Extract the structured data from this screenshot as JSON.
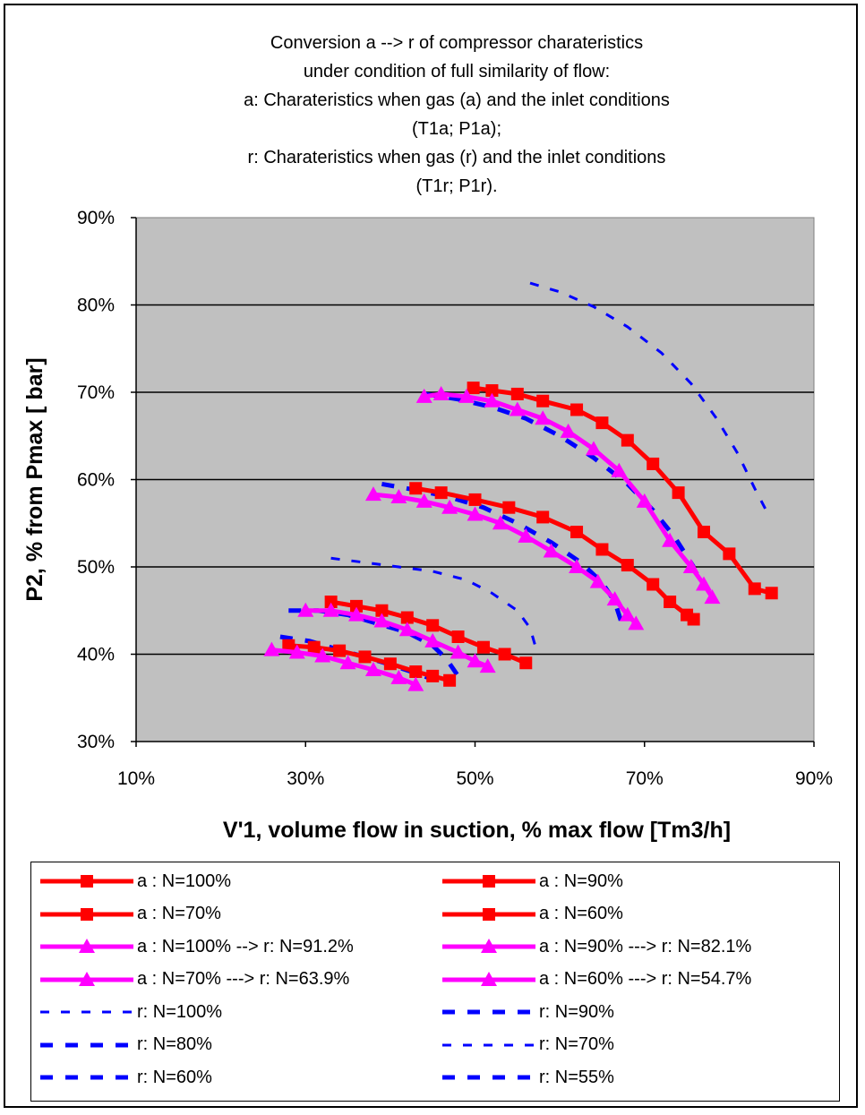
{
  "chart_data": {
    "type": "line",
    "title_lines": [
      "Conversion a --> r of compressor charateristics",
      "under condition of full similarity of flow:",
      "a: Charateristics when gas (a) and the inlet conditions",
      "(T1a; P1a);",
      "r: Charateristics when gas (r) and the inlet conditions",
      "(T1r; P1r)."
    ],
    "xlabel": "V'1, volume flow in suction, % max flow [Tm3/h]",
    "ylabel": "P2, % from Pmax [ bar]",
    "xlim": [
      10,
      90
    ],
    "ylim": [
      30,
      90
    ],
    "xticks": [
      "10%",
      "30%",
      "50%",
      "70%",
      "90%"
    ],
    "yticks": [
      "30%",
      "40%",
      "50%",
      "60%",
      "70%",
      "80%",
      "90%"
    ],
    "grid": "horizontal major",
    "plot_background": "#c0c0c0",
    "legend_position": "bottom",
    "series": [
      {
        "name": "a : N=100%",
        "style": "red-square",
        "color": "#ff0000",
        "x": [
          49.8,
          52,
          55,
          58,
          62,
          65,
          68,
          71,
          74,
          77,
          80,
          83,
          85
        ],
        "y": [
          70.5,
          70.2,
          69.8,
          69,
          68,
          66.5,
          64.5,
          61.8,
          58.5,
          54,
          51.5,
          47.5,
          47
        ]
      },
      {
        "name": "a : N=90%",
        "style": "red-square",
        "color": "#ff0000",
        "x": [
          43,
          46,
          50,
          54,
          58,
          62,
          65,
          68,
          71,
          73,
          75,
          75.8
        ],
        "y": [
          59,
          58.5,
          57.7,
          56.8,
          55.7,
          54,
          52,
          50.2,
          48,
          46,
          44.5,
          44
        ]
      },
      {
        "name": "a : N=70%",
        "style": "red-square",
        "color": "#ff0000",
        "x": [
          33,
          36,
          39,
          42,
          45,
          48,
          51,
          53.5,
          56
        ],
        "y": [
          46,
          45.5,
          45,
          44.2,
          43.3,
          42,
          40.8,
          40,
          39
        ]
      },
      {
        "name": "a : N=60%",
        "style": "red-square",
        "color": "#ff0000",
        "x": [
          28,
          31,
          34,
          37,
          40,
          43,
          45,
          47
        ],
        "y": [
          41,
          40.8,
          40.4,
          39.7,
          38.9,
          38,
          37.5,
          37
        ]
      },
      {
        "name": "a : N=100% --> r: N=91.2%",
        "style": "magenta-triangle",
        "color": "#ff00ff",
        "x": [
          44,
          46,
          49,
          52,
          55,
          58,
          61,
          64,
          67,
          70,
          73,
          75.5,
          77,
          78
        ],
        "y": [
          69.5,
          69.8,
          69.5,
          69,
          68,
          67,
          65.5,
          63.5,
          61,
          57.5,
          53,
          50,
          48,
          46.5
        ]
      },
      {
        "name": "a : N=90% ---> r: N=82.1%",
        "style": "magenta-triangle",
        "color": "#ff00ff",
        "x": [
          38,
          41,
          44,
          47,
          50,
          53,
          56,
          59,
          62,
          64.5,
          66.5,
          68,
          69
        ],
        "y": [
          58.3,
          58,
          57.5,
          56.8,
          56,
          55,
          53.5,
          51.8,
          50,
          48.3,
          46.3,
          44.5,
          43.5
        ]
      },
      {
        "name": "a : N=70% ---> r: N=63.9%",
        "style": "magenta-triangle",
        "color": "#ff00ff",
        "x": [
          30,
          33,
          36,
          39,
          42,
          45,
          48,
          50,
          51.5
        ],
        "y": [
          45,
          45,
          44.5,
          43.8,
          42.8,
          41.5,
          40.2,
          39.2,
          38.6
        ]
      },
      {
        "name": "a : N=60% ---> r: N=54.7%",
        "style": "magenta-triangle",
        "color": "#ff00ff",
        "x": [
          26,
          29,
          32,
          35,
          38,
          41,
          43
        ],
        "y": [
          40.5,
          40.2,
          39.8,
          39,
          38.2,
          37.3,
          36.5
        ]
      },
      {
        "name": "r: N=100%",
        "style": "blue-dash-thin",
        "color": "#0000ff",
        "x": [
          56.5,
          60,
          64,
          68,
          72,
          75.5,
          78.5,
          81,
          83,
          84.5
        ],
        "y": [
          82.5,
          81.5,
          79.8,
          77.5,
          74.5,
          71,
          67,
          63,
          59,
          56.2
        ]
      },
      {
        "name": "r: N=90%",
        "style": "blue-dash-thick",
        "color": "#0000ff",
        "x": [
          44,
          48,
          52,
          56,
          60,
          64,
          68,
          71,
          73.5,
          75.8
        ],
        "y": [
          69.8,
          69.2,
          68.3,
          67,
          65,
          62.5,
          59.5,
          56.5,
          53.5,
          50
        ]
      },
      {
        "name": "r: N=80%",
        "style": "blue-dash-thick",
        "color": "#0000ff",
        "x": [
          39,
          43,
          47,
          51,
          55,
          59,
          62.5,
          65,
          66.5,
          67.5
        ],
        "y": [
          59.5,
          58.8,
          58,
          56.8,
          55,
          52.8,
          50.5,
          48.2,
          46,
          43
        ]
      },
      {
        "name": "r: N=70%",
        "style": "blue-dash-thin",
        "color": "#0000ff",
        "x": [
          33,
          37,
          41,
          45,
          49,
          52,
          55,
          56.5,
          57.4
        ],
        "y": [
          51,
          50.5,
          50,
          49.5,
          48.5,
          47,
          45,
          43,
          40
        ]
      },
      {
        "name": "r: N=60%",
        "style": "blue-dash-thick",
        "color": "#0000ff",
        "x": [
          28,
          31.5,
          35,
          38.5,
          42,
          45,
          46.6,
          48
        ],
        "y": [
          45,
          45,
          44.5,
          43.5,
          42.5,
          41,
          39.5,
          37.5
        ]
      },
      {
        "name": "r: N=55%",
        "style": "blue-dash-thick",
        "color": "#0000ff",
        "x": [
          27,
          30.5,
          34,
          37,
          40,
          42.5,
          44.5
        ],
        "y": [
          42,
          41.5,
          40.5,
          39.7,
          38.8,
          38,
          37.3
        ]
      }
    ]
  }
}
